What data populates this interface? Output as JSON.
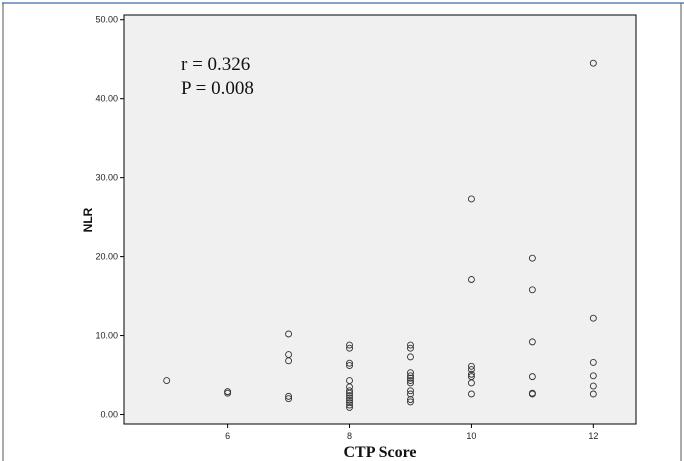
{
  "chart_data": {
    "type": "scatter",
    "title": "",
    "xlabel": "CTP Score",
    "ylabel": "NLR",
    "xlim": [
      4.3,
      12.7
    ],
    "ylim": [
      -1.2,
      50.6
    ],
    "x_ticks": [
      6,
      8,
      10,
      12
    ],
    "x_tick_labels": [
      "6",
      "8",
      "10",
      "12"
    ],
    "y_ticks": [
      0,
      10,
      20,
      30,
      40,
      50
    ],
    "y_tick_labels": [
      "0.00",
      "10.00",
      "20.00",
      "30.00",
      "40.00",
      "50.00"
    ],
    "grid": false,
    "annotations": [
      "r = 0.326",
      "P = 0.008"
    ],
    "colors": {
      "plot_background": "#f0f0f0",
      "marker": "#333333",
      "frame_line": "#3a6ea8"
    },
    "x": [
      5,
      6,
      6,
      7,
      7,
      7,
      7,
      7,
      8,
      8,
      8,
      8,
      8,
      8,
      8,
      8,
      8,
      8,
      8,
      8,
      8,
      8,
      9,
      9,
      9,
      9,
      9,
      9,
      9,
      9,
      9,
      9,
      9,
      9,
      10,
      10,
      10,
      10,
      10,
      10,
      10,
      10,
      11,
      11,
      11,
      11,
      11,
      11,
      12,
      12,
      12,
      12,
      12,
      12
    ],
    "y": [
      4.3,
      2.9,
      2.7,
      10.2,
      7.6,
      6.8,
      2.3,
      2.0,
      8.8,
      8.4,
      6.5,
      6.2,
      4.3,
      3.5,
      3.0,
      2.7,
      2.4,
      2.1,
      1.8,
      1.5,
      1.2,
      0.9,
      8.8,
      8.4,
      7.3,
      5.3,
      4.9,
      4.6,
      4.3,
      4.0,
      3.0,
      2.6,
      1.9,
      1.6,
      27.3,
      17.1,
      6.1,
      5.7,
      5.1,
      4.8,
      4.0,
      2.6,
      19.8,
      15.8,
      9.2,
      4.8,
      2.7,
      2.6,
      44.5,
      12.2,
      6.6,
      4.9,
      3.6,
      2.6
    ]
  }
}
